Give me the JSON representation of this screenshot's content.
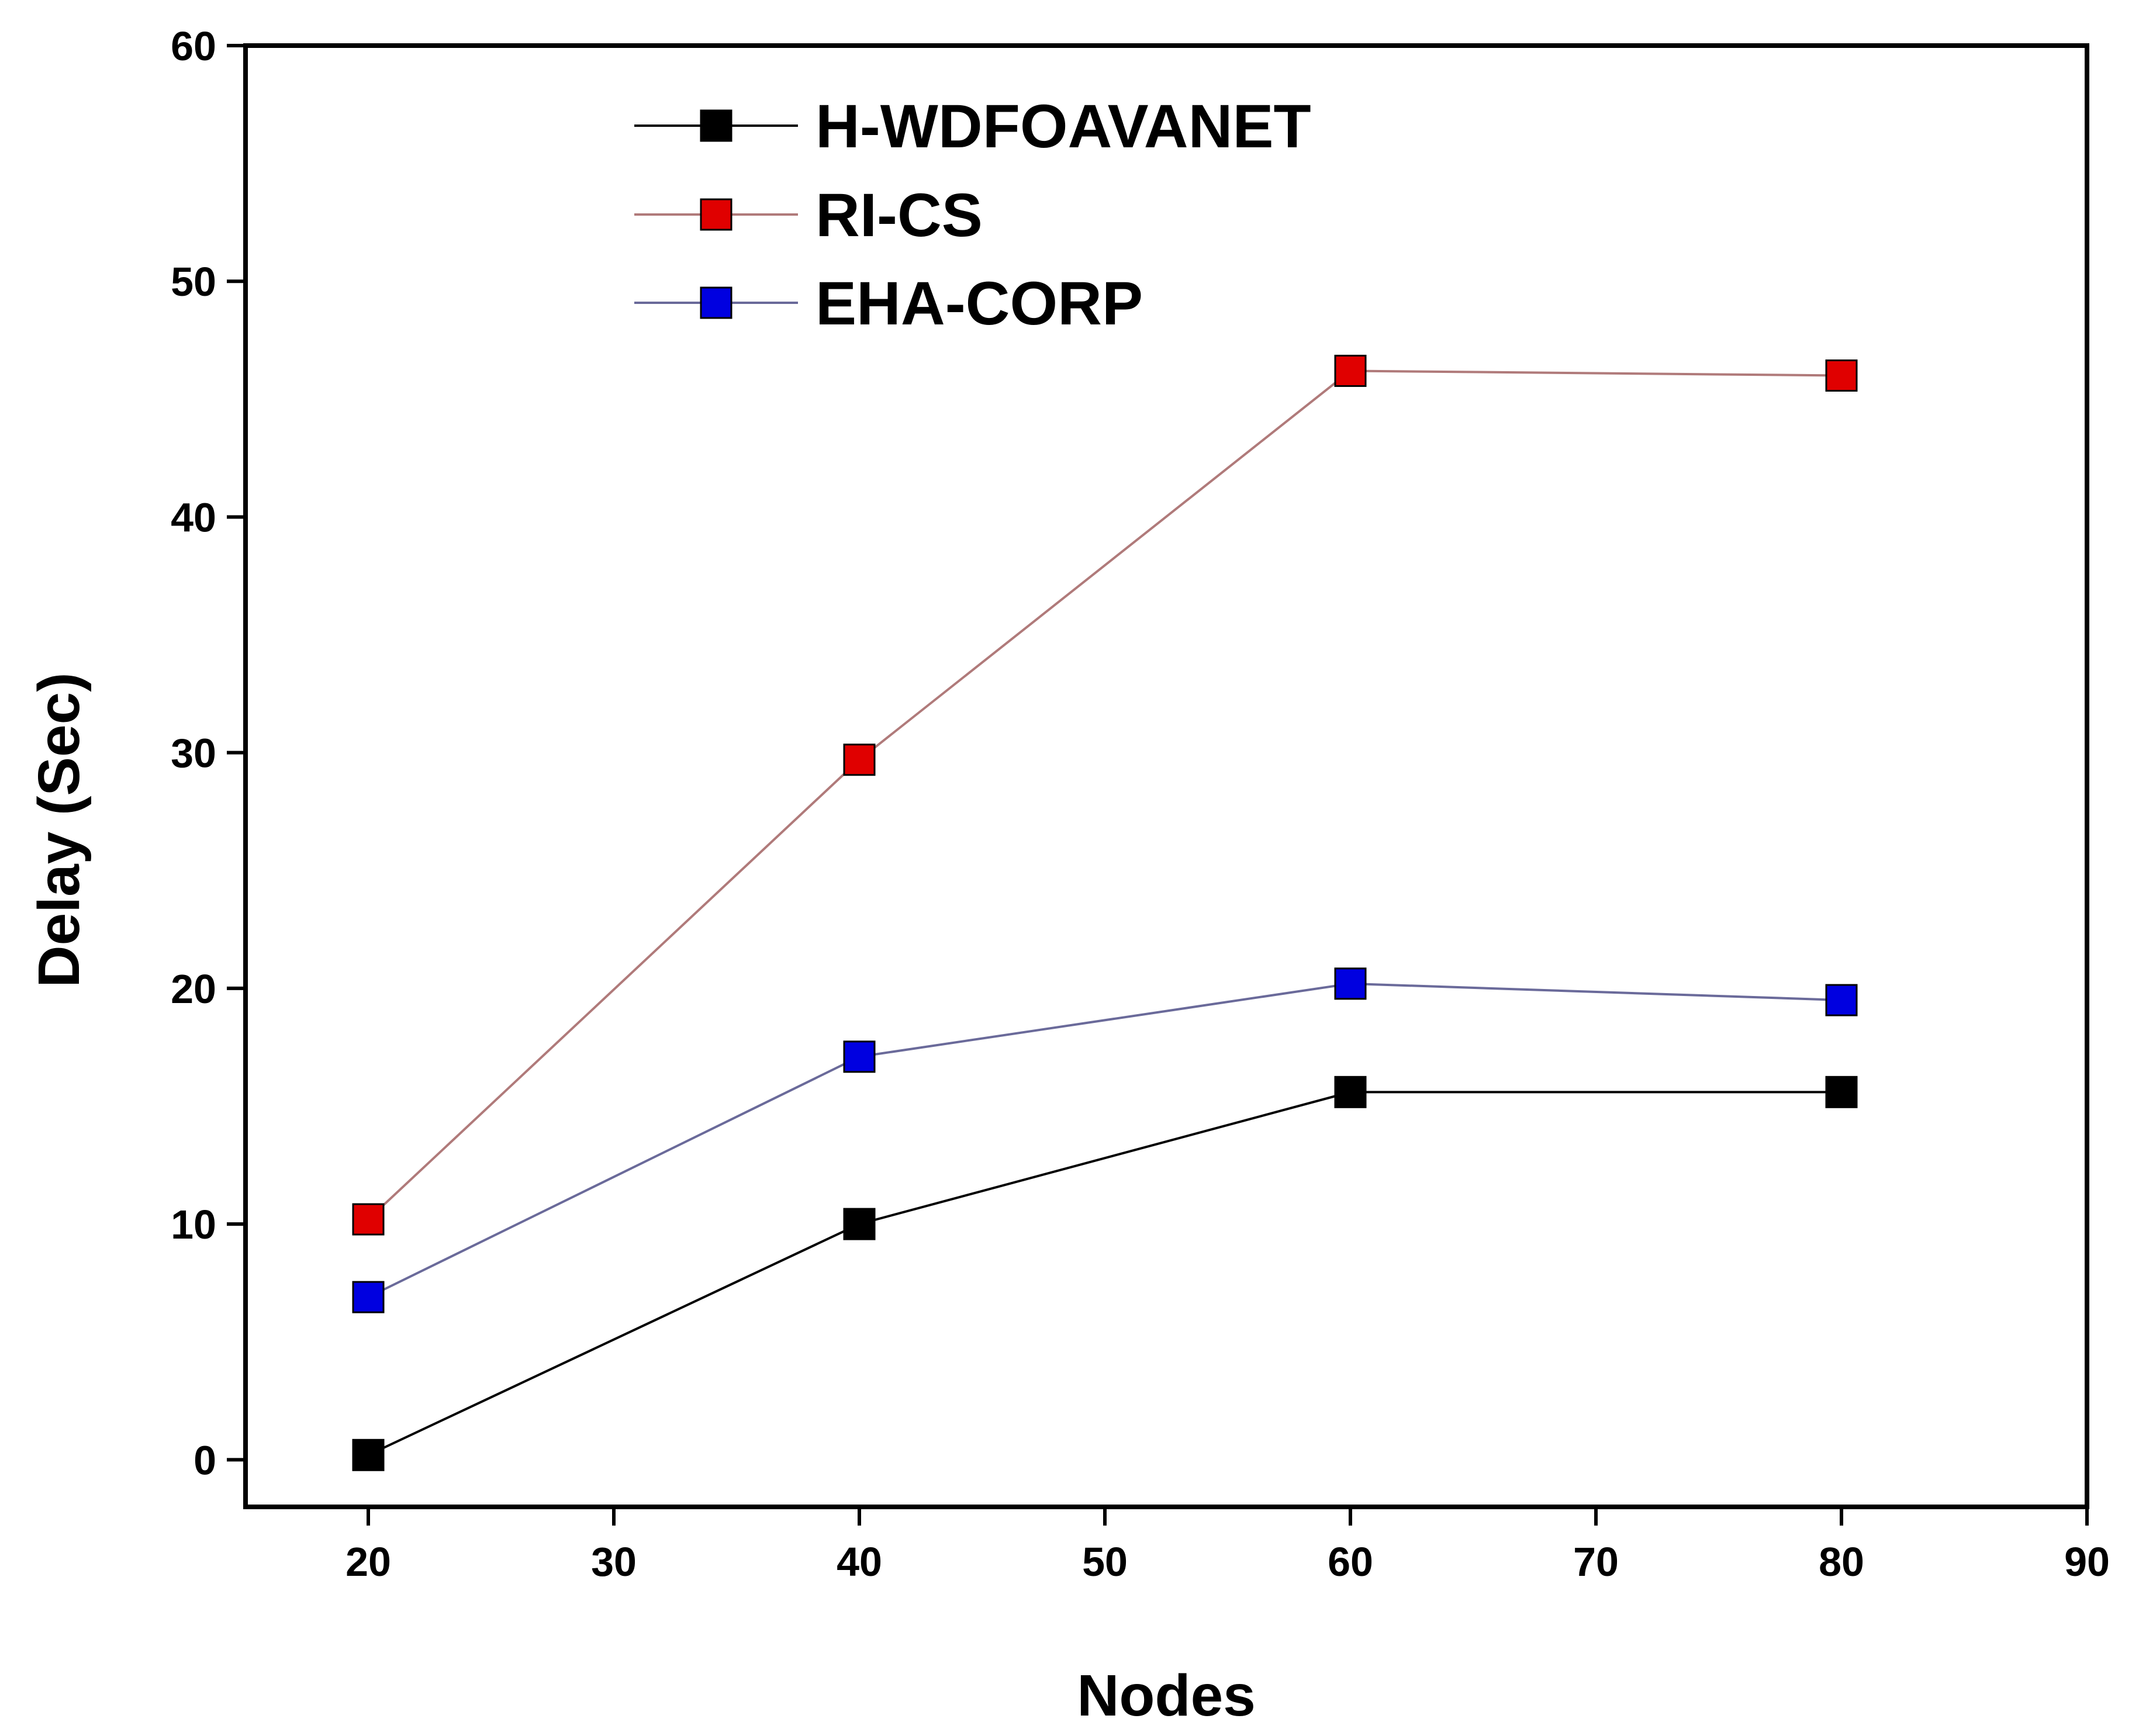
{
  "chart_data": {
    "type": "line",
    "title": "",
    "xlabel": "Nodes",
    "ylabel": "Delay (Sec)",
    "xlim": [
      15,
      90
    ],
    "ylim": [
      -2,
      60
    ],
    "xticks": [
      20,
      30,
      40,
      50,
      60,
      70,
      80,
      90
    ],
    "yticks": [
      0,
      10,
      20,
      30,
      40,
      50,
      60
    ],
    "x": [
      20,
      40,
      60,
      80
    ],
    "grid": false,
    "legend_position": "top-left",
    "series": [
      {
        "name": "H-WDFOAVANET",
        "color": "#000000",
        "line_color": "#000000",
        "values": [
          0.2,
          10.0,
          15.6,
          15.6
        ]
      },
      {
        "name": "RI-CS",
        "color": "#e00000",
        "line_color": "#b07a7a",
        "values": [
          10.2,
          29.7,
          46.2,
          46.0
        ]
      },
      {
        "name": "EHA-CORP",
        "color": "#0000e0",
        "line_color": "#6a6a9a",
        "values": [
          6.9,
          17.1,
          20.2,
          19.5
        ]
      }
    ]
  }
}
